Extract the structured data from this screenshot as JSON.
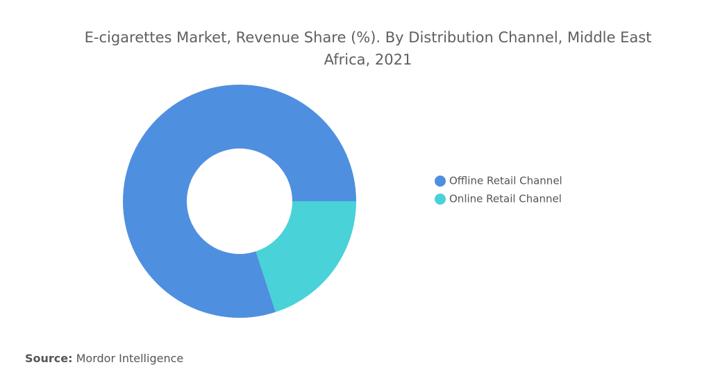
{
  "chart_data": {
    "type": "donut",
    "title": "E-cigarettes Market, Revenue Share (%). By Distribution Channel, Middle East Africa, 2021",
    "categories": [
      "Offline Retail Channel",
      "Online Retail Channel"
    ],
    "values": [
      80,
      20
    ],
    "colors": [
      "#4f8fdf",
      "#49d2d8"
    ],
    "legend": "right"
  },
  "footer": {
    "source_label": "Source:",
    "source": "Mordor Intelligence"
  }
}
